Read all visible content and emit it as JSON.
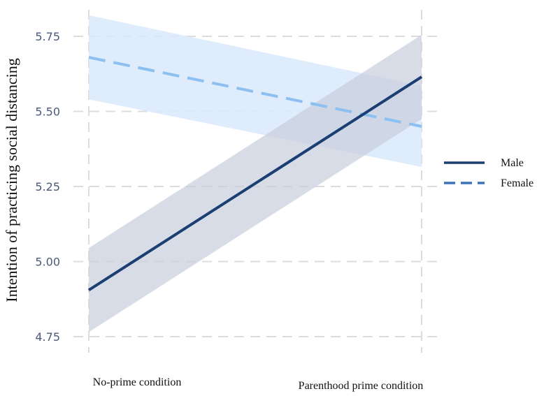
{
  "chart_data": {
    "type": "line",
    "categories": [
      "No-prime condition",
      "Parenthood prime condition"
    ],
    "ylabel": "Intention of practicing social distancing",
    "xlabel": "",
    "ylim": [
      4.72,
      5.82
    ],
    "yticks": [
      4.75,
      5.0,
      5.25,
      5.5,
      5.75
    ],
    "ytick_labels": [
      "4.75",
      "5.00",
      "5.25",
      "5.50",
      "5.75"
    ],
    "grid": true,
    "legend_position": "right",
    "series": [
      {
        "name": "Male",
        "style": "solid",
        "color": "#1b3f73",
        "band_color": "#c9d0df",
        "values": [
          4.905,
          5.615
        ],
        "ci_low": [
          4.765,
          5.475
        ],
        "ci_high": [
          5.045,
          5.755
        ]
      },
      {
        "name": "Female",
        "style": "dashed",
        "color": "#8cc0f0",
        "band_color": "#d8e9fb",
        "values": [
          5.68,
          5.45
        ],
        "ci_low": [
          5.54,
          5.315
        ],
        "ci_high": [
          5.82,
          5.585
        ]
      }
    ]
  }
}
